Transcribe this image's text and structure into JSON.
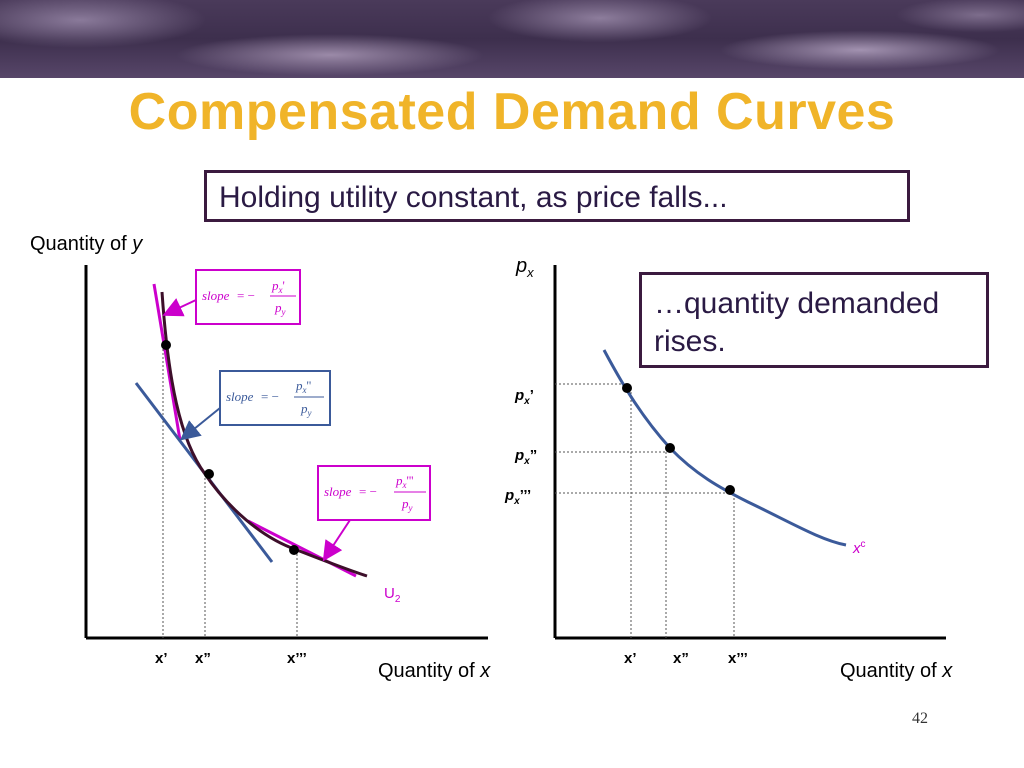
{
  "slide": {
    "title": "Compensated Demand Curves",
    "callout_top": "Holding utility constant, as price falls...",
    "callout_right": "…quantity demanded rises.",
    "page_number": "42"
  },
  "left_graph": {
    "y_axis_label": "Quantity of ",
    "y_axis_var": "y",
    "x_axis_label": "Quantity of ",
    "x_axis_var": "x",
    "curve_label": "U",
    "curve_label_sub": "2",
    "x_ticks": [
      "x’",
      "x”",
      "x’’’"
    ],
    "slope_boxes": [
      {
        "lhs": "slope",
        "eq": "= −",
        "num": "p",
        "num_sub": "x",
        "num_primes": "'",
        "den": "p",
        "den_sub": "y",
        "color": "#cc00cc"
      },
      {
        "lhs": "slope",
        "eq": "= −",
        "num": "p",
        "num_sub": "x",
        "num_primes": "''",
        "den": "p",
        "den_sub": "y",
        "color": "#3b5a9a"
      },
      {
        "lhs": "slope",
        "eq": "= −",
        "num": "p",
        "num_sub": "x",
        "num_primes": "'''",
        "den": "p",
        "den_sub": "y",
        "color": "#cc00cc"
      }
    ]
  },
  "right_graph": {
    "y_axis_label": "p",
    "y_axis_sub": "x",
    "x_axis_label": "Quantity of ",
    "x_axis_var": "x",
    "curve_label": "x",
    "curve_label_sup": "c",
    "x_ticks": [
      "x’",
      "x”",
      "x’’’"
    ],
    "price_labels": [
      {
        "base": "p",
        "sub": "x",
        "primes": "’"
      },
      {
        "base": "p",
        "sub": "x",
        "primes": "”"
      },
      {
        "base": "p",
        "sub": "x",
        "primes": "’’’"
      }
    ]
  },
  "colors": {
    "title": "#f0b429",
    "curve": "#3d0f2a",
    "tangent_magenta": "#cc00cc",
    "tangent_blue": "#3b5a9a",
    "demand_curve": "#3b5a9a",
    "curve_label": "#cc00cc"
  }
}
